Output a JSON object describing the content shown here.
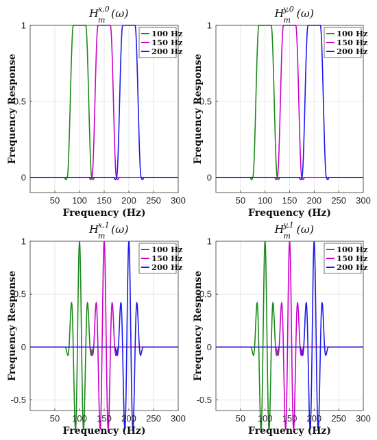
{
  "figure_colors": {
    "series": [
      "#1a8a1a",
      "#cc00cc",
      "#1a1aee"
    ],
    "grid": "#e6e6e6",
    "axis": "#333333"
  },
  "chart_data": [
    {
      "type": "line",
      "title": {
        "base": "H",
        "sub": "m",
        "sup": "x,0",
        "arg": "(ω)"
      },
      "xlabel": "Frequency (Hz)",
      "ylabel": "Frequency Response",
      "xlim": [
        0,
        300
      ],
      "ylim": [
        -0.1,
        1.0
      ],
      "xticks": [
        50,
        100,
        150,
        200,
        250,
        300
      ],
      "yticks": [
        0,
        0.5,
        1
      ],
      "ytick_labels": [
        "0",
        "0.5",
        "1"
      ],
      "grid": true,
      "legend": "top-right",
      "series": [
        {
          "name": "100 Hz",
          "center": 100,
          "shape": "passband"
        },
        {
          "name": "150 Hz",
          "center": 150,
          "shape": "passband"
        },
        {
          "name": "200 Hz",
          "center": 200,
          "shape": "passband"
        }
      ]
    },
    {
      "type": "line",
      "title": {
        "base": "H",
        "sub": "m",
        "sup": "y,0",
        "arg": "(ω)"
      },
      "xlabel": "Frequency (Hz)",
      "ylabel": "Frequency Response",
      "xlim": [
        0,
        300
      ],
      "ylim": [
        -0.1,
        1.0
      ],
      "xticks": [
        50,
        100,
        150,
        200,
        250,
        300
      ],
      "yticks": [
        0,
        0.5,
        1
      ],
      "ytick_labels": [
        "0",
        "0.5",
        "1"
      ],
      "grid": true,
      "legend": "top-right",
      "series": [
        {
          "name": "100 Hz",
          "center": 100,
          "shape": "passband"
        },
        {
          "name": "150 Hz",
          "center": 150,
          "shape": "passband"
        },
        {
          "name": "200 Hz",
          "center": 200,
          "shape": "passband"
        }
      ]
    },
    {
      "type": "line",
      "title": {
        "base": "H",
        "sub": "m",
        "sup": "x,1",
        "arg": "(ω)"
      },
      "xlabel": "Frequency (Hz)",
      "ylabel": "Frequency Response",
      "xlim": [
        0,
        300
      ],
      "ylim": [
        -0.6,
        1.0
      ],
      "xticks": [
        50,
        100,
        150,
        200,
        250,
        300
      ],
      "yticks": [
        -0.5,
        0,
        0.5,
        1
      ],
      "ytick_labels": [
        "-0.5",
        "0",
        "0.5",
        "1"
      ],
      "grid": true,
      "legend": "top-right",
      "series": [
        {
          "name": "100 Hz",
          "center": 100,
          "shape": "wavelet"
        },
        {
          "name": "150 Hz",
          "center": 150,
          "shape": "wavelet"
        },
        {
          "name": "200 Hz",
          "center": 200,
          "shape": "wavelet"
        }
      ]
    },
    {
      "type": "line",
      "title": {
        "base": "H",
        "sub": "m",
        "sup": "y,1",
        "arg": "(ω)"
      },
      "xlabel": "Frequency (Hz)",
      "ylabel": "Frequency Response",
      "xlim": [
        0,
        300
      ],
      "ylim": [
        -0.6,
        1.0
      ],
      "xticks": [
        50,
        100,
        150,
        200,
        250,
        300
      ],
      "yticks": [
        -0.5,
        0,
        0.5,
        1
      ],
      "ytick_labels": [
        "-0.5",
        "0",
        "0.5",
        "1"
      ],
      "grid": true,
      "legend": "top-right",
      "series": [
        {
          "name": "100 Hz",
          "center": 100,
          "shape": "wavelet"
        },
        {
          "name": "150 Hz",
          "center": 150,
          "shape": "wavelet"
        },
        {
          "name": "200 Hz",
          "center": 200,
          "shape": "wavelet"
        }
      ]
    }
  ]
}
